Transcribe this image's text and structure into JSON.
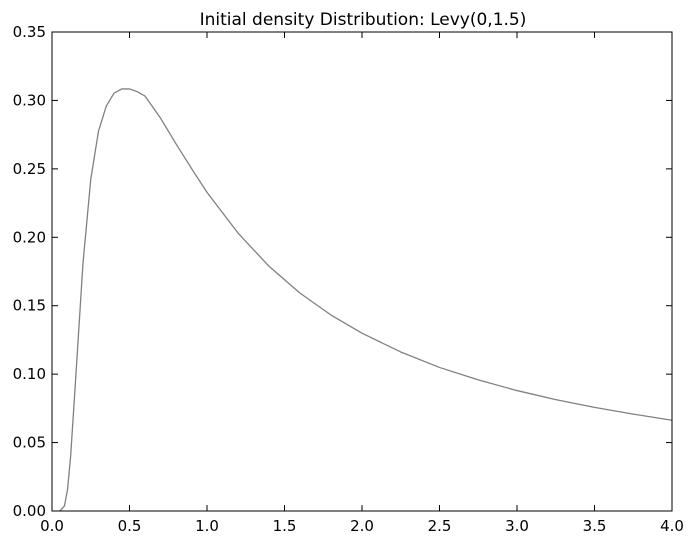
{
  "chart_data": {
    "type": "line",
    "title": "Initial density Distribution: Levy(0,1.5)",
    "xlabel": "",
    "ylabel": "",
    "xlim": [
      0.0,
      4.0
    ],
    "ylim": [
      0.0,
      0.35
    ],
    "grid": false,
    "legend": "none",
    "x_ticks": [
      "0.0",
      "0.5",
      "1.0",
      "1.5",
      "2.0",
      "2.5",
      "3.0",
      "3.5",
      "4.0"
    ],
    "y_ticks": [
      "0.00",
      "0.05",
      "0.10",
      "0.15",
      "0.20",
      "0.25",
      "0.30",
      "0.35"
    ],
    "series": [
      {
        "color": "#808080",
        "x": [
          0.05,
          0.08,
          0.1,
          0.12,
          0.15,
          0.2,
          0.25,
          0.3,
          0.35,
          0.4,
          0.45,
          0.5,
          0.55,
          0.6,
          0.7,
          0.8,
          0.9,
          1.0,
          1.2,
          1.4,
          1.6,
          1.8,
          2.0,
          2.25,
          2.5,
          2.75,
          3.0,
          3.25,
          3.5,
          3.75,
          4.0
        ],
        "y": [
          0.0,
          0.0036,
          0.0155,
          0.0397,
          0.0918,
          0.1812,
          0.2423,
          0.2776,
          0.2958,
          0.3053,
          0.3084,
          0.3084,
          0.3064,
          0.3032,
          0.2871,
          0.2683,
          0.2503,
          0.2328,
          0.2031,
          0.1788,
          0.1592,
          0.1432,
          0.1299,
          0.1162,
          0.1049,
          0.0958,
          0.088,
          0.0814,
          0.0757,
          0.0708,
          0.0663
        ]
      }
    ]
  }
}
